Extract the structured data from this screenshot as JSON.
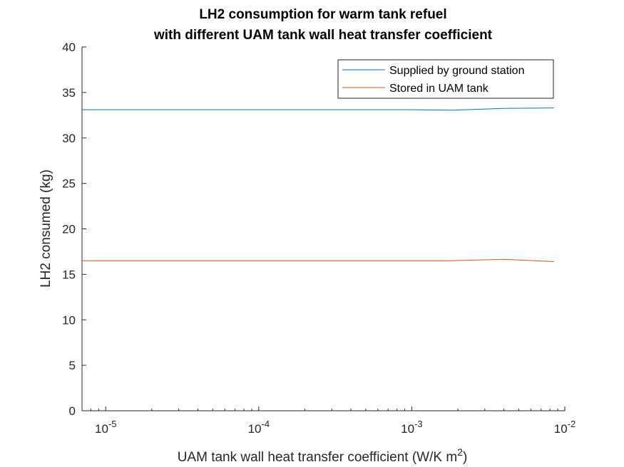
{
  "chart_data": {
    "type": "line",
    "title": [
      "LH2 consumption for warm tank refuel",
      "with different UAM tank wall heat transfer coefficient"
    ],
    "xlabel": "UAM tank wall heat transfer coefficient (W/K m",
    "xlabel_sup": "2",
    "xlabel_suffix": ")",
    "ylabel": "LH2 consumed (kg)",
    "xscale": "log",
    "xlim": [
      7e-06,
      0.01
    ],
    "ylim": [
      0,
      40
    ],
    "yticks": [
      0,
      5,
      10,
      15,
      20,
      25,
      30,
      35,
      40
    ],
    "yticklabels": [
      "0",
      "5",
      "10",
      "15",
      "20",
      "25",
      "30",
      "35",
      "40"
    ],
    "xticks": [
      1e-05,
      0.0001,
      0.001,
      0.01
    ],
    "xticklabels": [
      {
        "base": "10",
        "exp": "-5"
      },
      {
        "base": "10",
        "exp": "-4"
      },
      {
        "base": "10",
        "exp": "-3"
      },
      {
        "base": "10",
        "exp": "-2"
      }
    ],
    "grid": false,
    "legend_position": "top-right",
    "series": [
      {
        "name": "Supplied by ground station",
        "color": "#0072BD",
        "x": [
          7e-06,
          1e-05,
          2e-05,
          5e-05,
          0.0001,
          0.0003,
          0.001,
          0.0018,
          0.004,
          0.0085
        ],
        "y": [
          33.1,
          33.1,
          33.1,
          33.1,
          33.1,
          33.1,
          33.1,
          33.05,
          33.25,
          33.3
        ]
      },
      {
        "name": "Stored in UAM tank",
        "color": "#D95319",
        "x": [
          7e-06,
          1e-05,
          2e-05,
          5e-05,
          0.0001,
          0.0003,
          0.001,
          0.0018,
          0.004,
          0.0085
        ],
        "y": [
          16.5,
          16.5,
          16.5,
          16.5,
          16.5,
          16.5,
          16.5,
          16.5,
          16.65,
          16.4
        ]
      }
    ]
  }
}
